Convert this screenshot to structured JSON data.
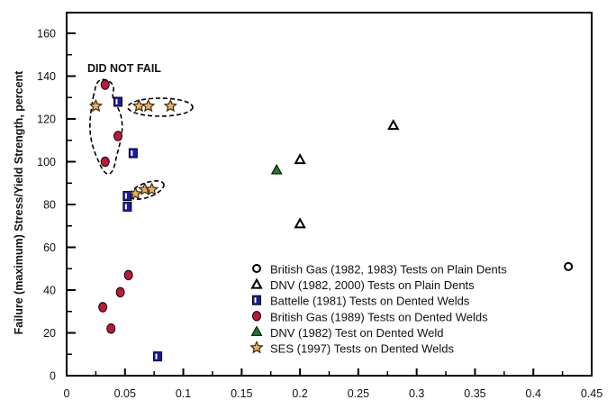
{
  "chart_data": {
    "type": "scatter",
    "title": "",
    "xlabel": "",
    "ylabel": "Failure (maximum) Stress/Yield Strength, percent",
    "xlim": [
      0,
      0.45
    ],
    "ylim": [
      0,
      160
    ],
    "xticks": [
      "0",
      "0.05",
      "0.1",
      "0.15",
      "0.2",
      "0.25",
      "0.3",
      "0.35",
      "0.4",
      "0.45"
    ],
    "yticks": [
      "0",
      "20",
      "40",
      "60",
      "80",
      "100",
      "120",
      "140",
      "160"
    ],
    "grid": false,
    "legend_position": "bottom-right",
    "annotation": "DID NOT FAIL",
    "series": [
      {
        "name": "British Gas (1982, 1983) Tests on Plain Dents",
        "marker": "circle-open",
        "color": "#000000",
        "points": [
          [
            0.43,
            51
          ]
        ]
      },
      {
        "name": "DNV (1982, 2000) Tests on Plain Dents",
        "marker": "triangle-open",
        "color": "#000000",
        "points": [
          [
            0.28,
            117
          ],
          [
            0.2,
            101
          ],
          [
            0.2,
            71
          ]
        ]
      },
      {
        "name": "Battelle (1981) Tests on Dented Welds",
        "marker": "square",
        "color": "#1a1aa8",
        "points": [
          [
            0.044,
            128
          ],
          [
            0.057,
            104
          ],
          [
            0.052,
            84
          ],
          [
            0.052,
            79
          ],
          [
            0.078,
            9
          ]
        ]
      },
      {
        "name": "British Gas (1989) Tests on Dented Welds",
        "marker": "circle",
        "color": "#c0183a",
        "points": [
          [
            0.033,
            136
          ],
          [
            0.044,
            112
          ],
          [
            0.033,
            100
          ],
          [
            0.053,
            47
          ],
          [
            0.046,
            39
          ],
          [
            0.031,
            32
          ],
          [
            0.038,
            22
          ]
        ]
      },
      {
        "name": "DNV (1982) Test on Dented Weld",
        "marker": "triangle",
        "color": "#1e7a2a",
        "points": [
          [
            0.18,
            96
          ]
        ]
      },
      {
        "name": "SES (1997) Tests on Dented Welds",
        "marker": "star",
        "color": "#e8b060",
        "points": [
          [
            0.025,
            126
          ],
          [
            0.062,
            126
          ],
          [
            0.07,
            126
          ],
          [
            0.089,
            126
          ],
          [
            0.059,
            85
          ],
          [
            0.067,
            87
          ],
          [
            0.073,
            87
          ]
        ]
      }
    ]
  }
}
